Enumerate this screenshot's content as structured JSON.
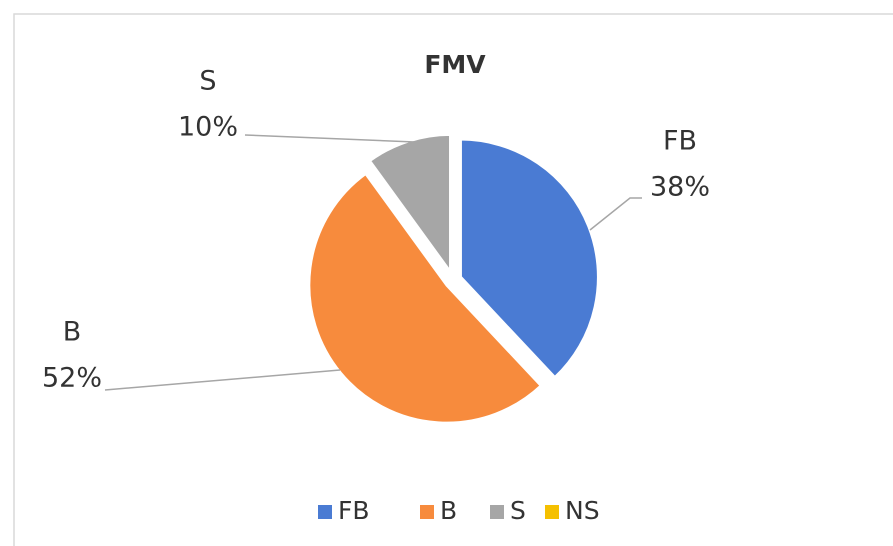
{
  "chart_data": {
    "type": "pie",
    "title": "FMV",
    "categories": [
      "FB",
      "B",
      "S",
      "NS"
    ],
    "values": [
      38,
      52,
      10,
      0
    ],
    "value_labels": [
      "38%",
      "52%",
      "10%",
      null
    ],
    "colors": [
      "#4a7bd3",
      "#f78b3d",
      "#a6a6a6",
      "#f5c000"
    ],
    "legend": "bottom"
  }
}
